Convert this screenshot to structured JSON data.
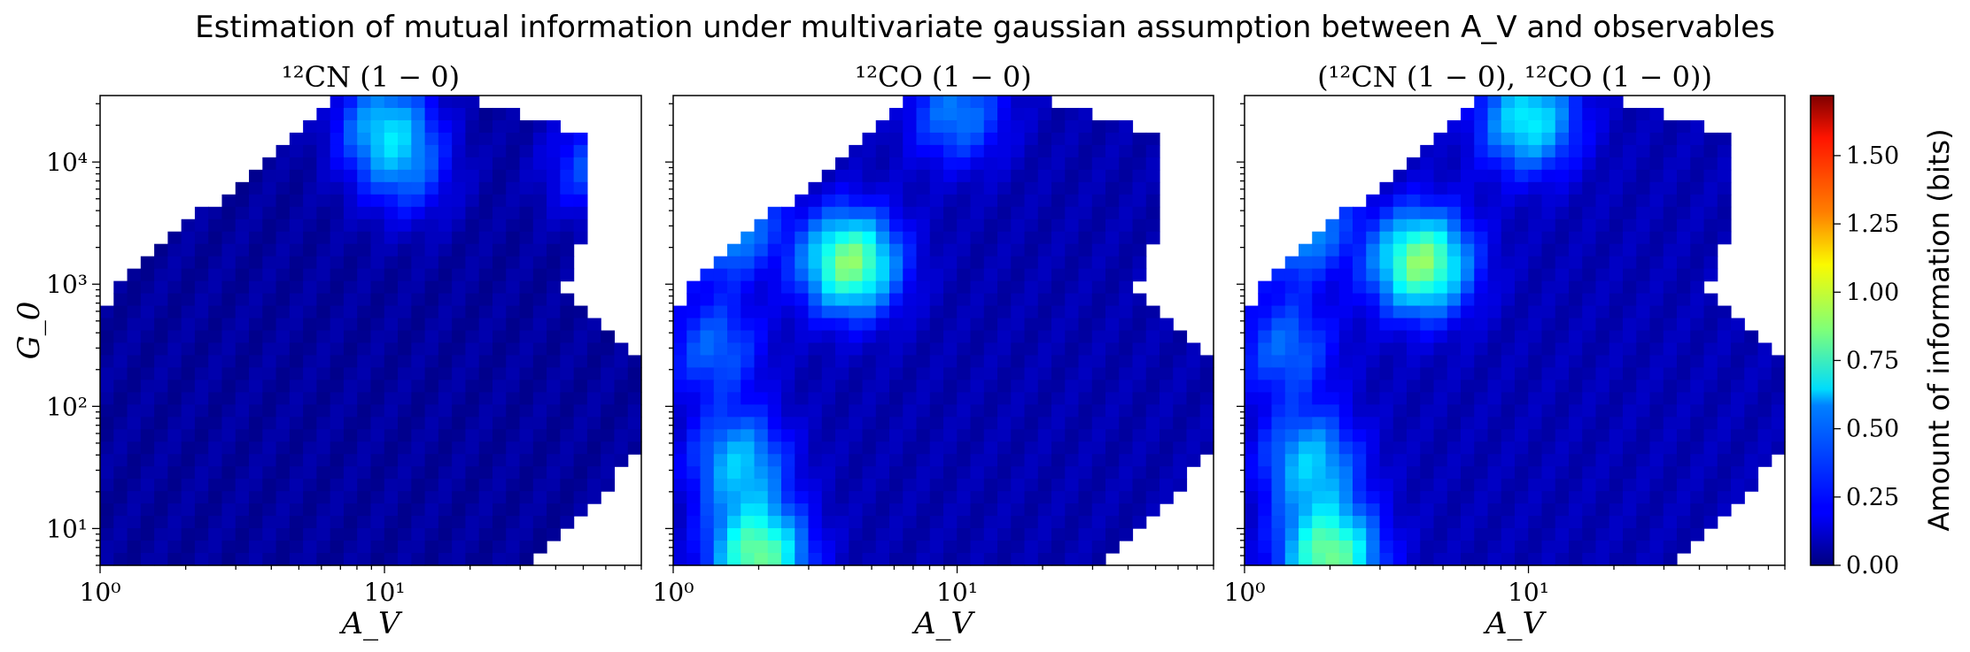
{
  "figure": {
    "suptitle": "Estimation of mutual information under multivariate gaussian assumption between A_V and observables"
  },
  "chart_data": [
    {
      "type": "heatmap",
      "title": "¹²CN (1 − 0)",
      "xlabel": "A_V",
      "ylabel": "G_0",
      "xscale": "log",
      "yscale": "log",
      "xlim": [
        1,
        80
      ],
      "ylim": [
        5,
        35000
      ],
      "xticks": [
        {
          "value": 1,
          "label": "10⁰"
        },
        {
          "value": 10,
          "label": "10¹"
        }
      ],
      "yticks": [
        {
          "value": 10,
          "label": "10¹"
        },
        {
          "value": 100,
          "label": "10²"
        },
        {
          "value": 1000,
          "label": "10³"
        },
        {
          "value": 10000,
          "label": "10⁴"
        }
      ],
      "colormap": "jet",
      "blobs": [
        {
          "av": 10,
          "g0": 20000,
          "value": 0.45
        },
        {
          "av": 12,
          "g0": 8000,
          "value": 0.25
        },
        {
          "av": 55,
          "g0": 9000,
          "value": 0.3
        }
      ],
      "background_value": 0.05
    },
    {
      "type": "heatmap",
      "title": "¹²CO (1 − 0)",
      "xlabel": "A_V",
      "ylabel": "",
      "xscale": "log",
      "yscale": "log",
      "xlim": [
        1,
        80
      ],
      "ylim": [
        5,
        35000
      ],
      "xticks": [
        {
          "value": 1,
          "label": "10⁰"
        },
        {
          "value": 10,
          "label": "10¹"
        }
      ],
      "colormap": "jet",
      "blobs": [
        {
          "av": 4.2,
          "g0": 1500,
          "value": 0.8
        },
        {
          "av": 2.0,
          "g0": 6,
          "value": 0.75
        },
        {
          "av": 1.7,
          "g0": 35,
          "value": 0.45
        },
        {
          "av": 1.5,
          "g0": 3200,
          "value": 0.5
        },
        {
          "av": 10,
          "g0": 25000,
          "value": 0.35
        },
        {
          "av": 1.4,
          "g0": 300,
          "value": 0.3
        }
      ],
      "background_value": 0.08
    },
    {
      "type": "heatmap",
      "title": "(¹²CN (1 − 0), ¹²CO (1 − 0))",
      "xlabel": "A_V",
      "ylabel": "",
      "xscale": "log",
      "yscale": "log",
      "xlim": [
        1,
        80
      ],
      "ylim": [
        5,
        35000
      ],
      "xticks": [
        {
          "value": 1,
          "label": "10⁰"
        },
        {
          "value": 10,
          "label": "10¹"
        }
      ],
      "colormap": "jet",
      "blobs": [
        {
          "av": 4.2,
          "g0": 1500,
          "value": 0.8
        },
        {
          "av": 2.0,
          "g0": 6,
          "value": 0.75
        },
        {
          "av": 1.7,
          "g0": 35,
          "value": 0.45
        },
        {
          "av": 1.5,
          "g0": 3200,
          "value": 0.5
        },
        {
          "av": 10,
          "g0": 22000,
          "value": 0.55
        },
        {
          "av": 1.4,
          "g0": 300,
          "value": 0.3
        }
      ],
      "background_value": 0.09
    }
  ],
  "colorbar": {
    "label": "Amount of information (bits)",
    "range": [
      0,
      1.72
    ],
    "ticks": [
      {
        "value": 0.0,
        "label": "0.00"
      },
      {
        "value": 0.25,
        "label": "0.25"
      },
      {
        "value": 0.5,
        "label": "0.50"
      },
      {
        "value": 0.75,
        "label": "0.75"
      },
      {
        "value": 1.0,
        "label": "1.00"
      },
      {
        "value": 1.25,
        "label": "1.25"
      },
      {
        "value": 1.5,
        "label": "1.50"
      }
    ]
  }
}
